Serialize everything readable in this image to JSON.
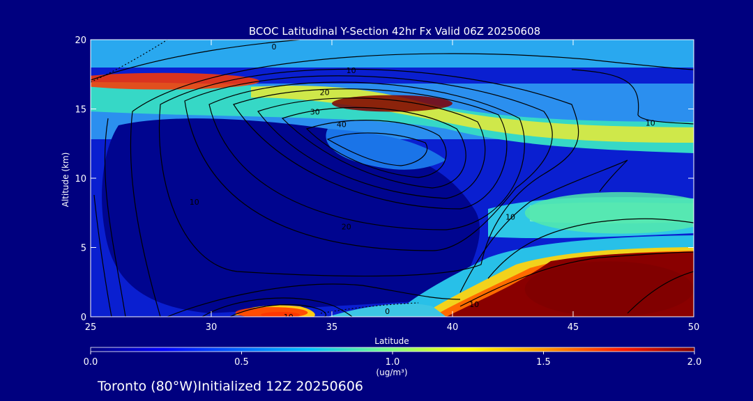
{
  "chart_data": {
    "type": "heatmap",
    "title": "BCOC Latitudinal Y-Section 42hr  Fx Valid 06Z 20250608",
    "xlabel": "Latitude",
    "ylabel": "Altitude (km)",
    "xlim": [
      25,
      50
    ],
    "ylim": [
      0,
      20
    ],
    "xticks": [
      "25",
      "30",
      "35",
      "40",
      "45",
      "50"
    ],
    "yticks": [
      "0",
      "5",
      "10",
      "15",
      "20"
    ],
    "colorbar": {
      "ticks": [
        "0.0",
        "0.5",
        "1.0",
        "1.5",
        "2.0"
      ],
      "unit": "(ug/m³)",
      "range": [
        0,
        2
      ]
    },
    "field_features": [
      {
        "lat": 37.5,
        "alt": 15.4,
        "value": 2.0,
        "lat_spread": 2.5,
        "alt_spread": 0.6
      },
      {
        "lat": 28.0,
        "alt": 17.0,
        "value": 1.7,
        "lat_spread": 4.0,
        "alt_spread": 0.6
      },
      {
        "lat": 32.5,
        "alt": 0.3,
        "value": 1.7,
        "lat_spread": 1.5,
        "alt_spread": 0.4
      },
      {
        "lat": 46.5,
        "alt": 2.0,
        "value": 2.0,
        "lat_spread": 3.5,
        "alt_spread": 2.0
      },
      {
        "lat": 47.0,
        "alt": 7.5,
        "value": 0.9,
        "lat_spread": 4.0,
        "alt_spread": 1.5
      }
    ],
    "contour_labels": [
      {
        "text": "0",
        "lat": 32.6,
        "alt": 19.5
      },
      {
        "text": "10",
        "lat": 35.8,
        "alt": 17.8
      },
      {
        "text": "20",
        "lat": 34.7,
        "alt": 16.2
      },
      {
        "text": "30",
        "lat": 34.3,
        "alt": 14.8
      },
      {
        "text": "40",
        "lat": 35.4,
        "alt": 13.9
      },
      {
        "text": "10",
        "lat": 48.2,
        "alt": 14.0
      },
      {
        "text": "10",
        "lat": 29.3,
        "alt": 8.3
      },
      {
        "text": "20",
        "lat": 35.6,
        "alt": 6.5
      },
      {
        "text": "10",
        "lat": 42.4,
        "alt": 7.2
      },
      {
        "text": "10",
        "lat": 40.9,
        "alt": 0.9
      },
      {
        "text": "0",
        "lat": 37.3,
        "alt": 0.4
      },
      {
        "text": "10",
        "lat": 33.2,
        "alt": 0.0
      }
    ]
  },
  "footer": {
    "text": "Toronto (80°W)Initialized 12Z 20250606"
  },
  "colors": {
    "background": "#00007f",
    "text": "#ffffff",
    "contour": "#000000"
  }
}
